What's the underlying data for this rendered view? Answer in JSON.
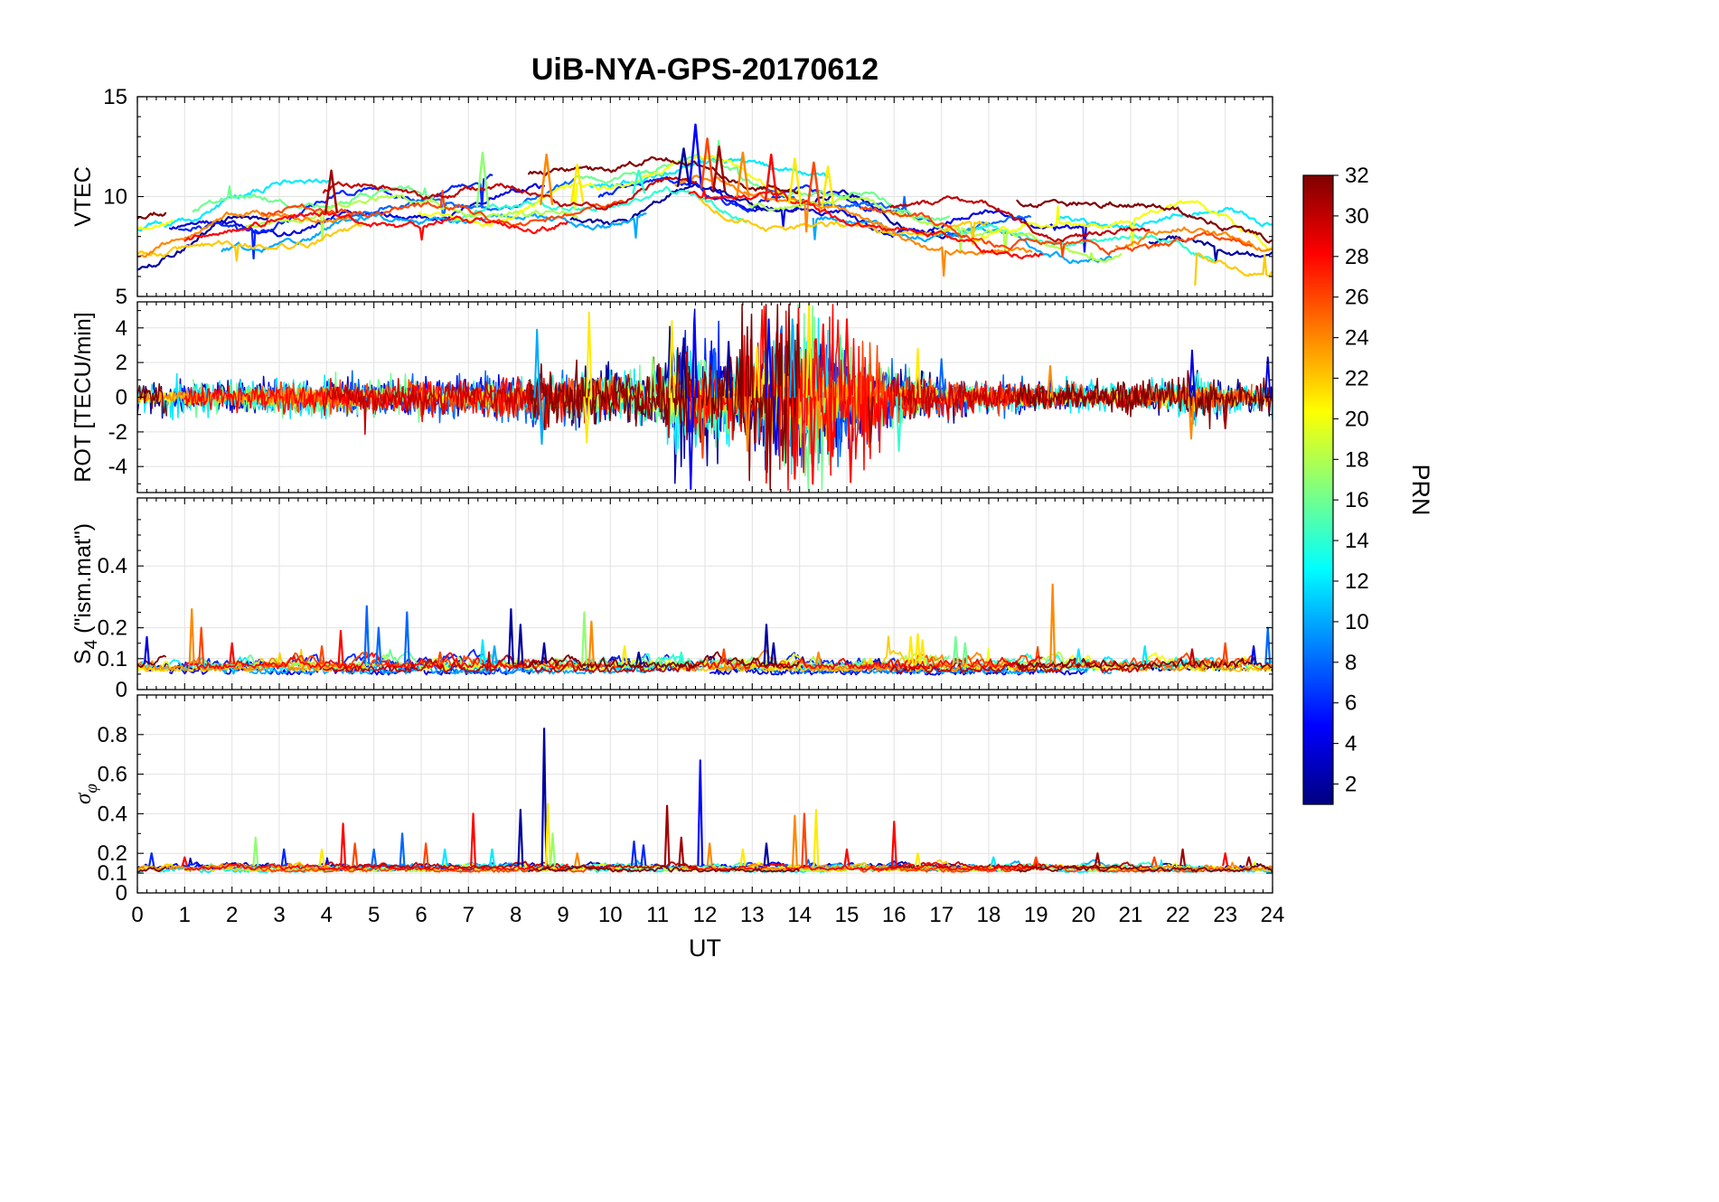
{
  "title": "UiB-NYA-GPS-20170612",
  "x_axis": {
    "label": "UT",
    "min": 0,
    "max": 24,
    "ticks": [
      0,
      1,
      2,
      3,
      4,
      5,
      6,
      7,
      8,
      9,
      10,
      11,
      12,
      13,
      14,
      15,
      16,
      17,
      18,
      19,
      20,
      21,
      22,
      23,
      24
    ],
    "minor_step": 0.2
  },
  "colorbar": {
    "label": "PRN",
    "min": 1,
    "max": 32,
    "ticks": [
      2,
      4,
      6,
      8,
      10,
      12,
      14,
      16,
      18,
      20,
      22,
      24,
      26,
      28,
      30,
      32
    ],
    "colormap": "jet"
  },
  "prns": [
    2,
    4,
    6,
    8,
    10,
    12,
    14,
    16,
    18,
    20,
    22,
    24,
    26,
    28,
    30,
    32
  ],
  "chart_data": [
    {
      "id": "vtec",
      "type": "line",
      "ylabel": "VTEC",
      "ylabel_parts": [
        {
          "t": "VTEC"
        }
      ],
      "ylim": [
        5,
        15
      ],
      "yticks": [
        5,
        10,
        15
      ],
      "yminor": [
        6,
        7,
        8,
        9,
        11,
        12,
        13,
        14
      ],
      "mode": "wander",
      "trend": {
        "t": [
          0,
          1,
          2,
          3,
          4,
          5,
          6,
          7,
          8,
          9,
          10,
          11,
          11.8,
          12.5,
          13,
          14,
          15,
          16,
          17,
          18,
          19,
          20,
          21,
          22,
          23,
          24
        ],
        "v": [
          7.6,
          8.0,
          8.6,
          8.9,
          9.2,
          9.4,
          9.4,
          9.5,
          9.5,
          9.7,
          9.9,
          10.4,
          10.6,
          10.2,
          9.9,
          9.7,
          9.4,
          8.9,
          8.7,
          8.5,
          8.2,
          8.1,
          8.0,
          8.1,
          7.8,
          7.2
        ]
      },
      "spread": 1.1,
      "spikes": [
        [
          4.1,
          11.3,
          31
        ],
        [
          7.3,
          12.2,
          17
        ],
        [
          8.65,
          12.1,
          24
        ],
        [
          9.3,
          11.6,
          21
        ],
        [
          10.6,
          11.3,
          14
        ],
        [
          11.55,
          12.4,
          2
        ],
        [
          11.8,
          13.6,
          5
        ],
        [
          12.05,
          12.9,
          26
        ],
        [
          12.3,
          12.5,
          31
        ],
        [
          12.8,
          12.2,
          24
        ],
        [
          13.4,
          12.1,
          28
        ],
        [
          13.9,
          11.9,
          21
        ],
        [
          14.3,
          11.7,
          26
        ],
        [
          14.6,
          11.5,
          21
        ]
      ]
    },
    {
      "id": "rot",
      "type": "line",
      "ylabel": "ROT [TECU/min]",
      "ylabel_parts": [
        {
          "t": "ROT [TECU/min]"
        }
      ],
      "ylim": [
        -5.5,
        5.5
      ],
      "yticks": [
        -4,
        -2,
        0,
        2,
        4
      ],
      "yminor": [
        -5,
        -3,
        -1,
        1,
        3,
        5
      ],
      "mode": "symnoise",
      "envelope": {
        "t": [
          0,
          1,
          2,
          3,
          4,
          5,
          6,
          7,
          8,
          8.5,
          9,
          9.5,
          10,
          10.5,
          11,
          11.3,
          11.6,
          12,
          12.5,
          13,
          13.3,
          13.6,
          14,
          14.3,
          14.6,
          15,
          15.3,
          15.6,
          16,
          16.5,
          17,
          18,
          19,
          20,
          21,
          22,
          22.3,
          22.6,
          23,
          24
        ],
        "a": [
          0.45,
          0.5,
          0.5,
          0.55,
          0.6,
          0.6,
          0.6,
          0.65,
          0.75,
          0.85,
          0.8,
          0.9,
          0.8,
          0.85,
          0.9,
          1.4,
          1.6,
          1.3,
          1.2,
          1.5,
          1.8,
          1.6,
          1.9,
          2.1,
          1.9,
          1.8,
          1.4,
          1.0,
          0.9,
          0.8,
          0.6,
          0.55,
          0.5,
          0.45,
          0.45,
          0.5,
          0.9,
          0.7,
          0.5,
          0.45
        ]
      },
      "spikes": [
        [
          8.45,
          3.9,
          10
        ],
        [
          8.55,
          -2.7,
          10
        ],
        [
          9.5,
          -2.6,
          21
        ],
        [
          9.55,
          4.9,
          21
        ],
        [
          10.9,
          2.3,
          17
        ],
        [
          11.3,
          4.4,
          21
        ],
        [
          11.55,
          3.4,
          2
        ],
        [
          11.7,
          -5.3,
          5
        ],
        [
          11.78,
          4.7,
          5
        ],
        [
          11.95,
          -3.5,
          26
        ],
        [
          12.2,
          2.8,
          8
        ],
        [
          12.5,
          3.2,
          2
        ],
        [
          12.9,
          -3.1,
          24
        ],
        [
          13.1,
          2.9,
          21
        ],
        [
          13.35,
          4.5,
          5
        ],
        [
          13.5,
          -3.3,
          5
        ],
        [
          13.85,
          4.5,
          10
        ],
        [
          13.9,
          -4.7,
          28
        ],
        [
          14.2,
          5.4,
          21
        ],
        [
          14.28,
          -5.0,
          28
        ],
        [
          14.5,
          4.2,
          28
        ],
        [
          14.7,
          -3.4,
          28
        ],
        [
          15.0,
          4.5,
          28
        ],
        [
          15.08,
          -4.9,
          28
        ],
        [
          15.5,
          -2.6,
          31
        ],
        [
          16.1,
          -3.1,
          14
        ],
        [
          16.5,
          2.8,
          21
        ],
        [
          17.0,
          2.2,
          8
        ],
        [
          19.3,
          1.8,
          24
        ],
        [
          22.3,
          2.7,
          4
        ],
        [
          22.28,
          -2.4,
          24
        ],
        [
          23.0,
          -1.8,
          31
        ],
        [
          23.9,
          2.3,
          4
        ]
      ]
    },
    {
      "id": "s4",
      "type": "line",
      "ylabel": "S4 (\"ism.mat\")",
      "ylabel_parts": [
        {
          "t": "S"
        },
        {
          "t": "4",
          "sub": true
        },
        {
          "t": " (\"ism.mat\")"
        }
      ],
      "ylim": [
        0,
        0.62
      ],
      "yticks": [
        0,
        0.1,
        0.2,
        0.4
      ],
      "yminor": [
        0.05,
        0.15,
        0.25,
        0.3,
        0.35,
        0.45,
        0.5,
        0.55
      ],
      "mode": "floor",
      "base": 0.055,
      "step": 0.03,
      "bump": 0.08,
      "spikes": [
        [
          0.2,
          0.17,
          4
        ],
        [
          1.15,
          0.26,
          24
        ],
        [
          1.35,
          0.2,
          26
        ],
        [
          2.0,
          0.15,
          28
        ],
        [
          3.9,
          0.14,
          26
        ],
        [
          4.3,
          0.19,
          28
        ],
        [
          4.85,
          0.27,
          8
        ],
        [
          5.1,
          0.2,
          8
        ],
        [
          5.7,
          0.25,
          8
        ],
        [
          6.4,
          0.12,
          26
        ],
        [
          7.3,
          0.16,
          12
        ],
        [
          7.55,
          0.14,
          10
        ],
        [
          7.9,
          0.26,
          2
        ],
        [
          8.1,
          0.21,
          2
        ],
        [
          8.6,
          0.15,
          2
        ],
        [
          9.45,
          0.25,
          17
        ],
        [
          9.6,
          0.22,
          24
        ],
        [
          10.3,
          0.14,
          21
        ],
        [
          10.6,
          0.12,
          2
        ],
        [
          11.5,
          0.12,
          14
        ],
        [
          12.4,
          0.13,
          26
        ],
        [
          13.3,
          0.21,
          2
        ],
        [
          13.45,
          0.15,
          2
        ],
        [
          14.4,
          0.12,
          24
        ],
        [
          15.5,
          0.1,
          21
        ],
        [
          16.35,
          0.17,
          21
        ],
        [
          16.5,
          0.18,
          21
        ],
        [
          16.6,
          0.16,
          21
        ],
        [
          17.3,
          0.17,
          16
        ],
        [
          17.5,
          0.15,
          16
        ],
        [
          19.35,
          0.34,
          24
        ],
        [
          19.9,
          0.13,
          12
        ],
        [
          21.3,
          0.14,
          12
        ],
        [
          22.3,
          0.13,
          30
        ],
        [
          23.0,
          0.15,
          26
        ],
        [
          23.6,
          0.14,
          4
        ],
        [
          23.9,
          0.2,
          8
        ]
      ]
    },
    {
      "id": "sigma-phi",
      "type": "line",
      "ylabel": "σφ",
      "ylabel_parts": [
        {
          "t": "σ",
          "i": true
        },
        {
          "t": "φ",
          "sub": true,
          "i": true
        }
      ],
      "ylim": [
        0,
        1.0
      ],
      "yticks": [
        0,
        0.1,
        0.2,
        0.4,
        0.6,
        0.8
      ],
      "yminor": [
        0.3,
        0.5,
        0.7,
        0.9
      ],
      "mode": "floor",
      "base": 0.11,
      "step": 0.022,
      "bump": 0.06,
      "spikes": [
        [
          0.3,
          0.2,
          6
        ],
        [
          1.0,
          0.18,
          28
        ],
        [
          2.5,
          0.28,
          17
        ],
        [
          3.1,
          0.22,
          6
        ],
        [
          3.9,
          0.22,
          21
        ],
        [
          4.35,
          0.35,
          28
        ],
        [
          4.6,
          0.25,
          26
        ],
        [
          5.0,
          0.22,
          8
        ],
        [
          5.6,
          0.3,
          8
        ],
        [
          6.1,
          0.25,
          26
        ],
        [
          6.5,
          0.22,
          12
        ],
        [
          7.1,
          0.4,
          28
        ],
        [
          7.5,
          0.22,
          12
        ],
        [
          8.1,
          0.42,
          2
        ],
        [
          8.6,
          0.83,
          2
        ],
        [
          8.68,
          0.45,
          21
        ],
        [
          8.78,
          0.3,
          17
        ],
        [
          9.3,
          0.2,
          24
        ],
        [
          10.5,
          0.26,
          6
        ],
        [
          10.7,
          0.24,
          6
        ],
        [
          11.2,
          0.44,
          31
        ],
        [
          11.5,
          0.28,
          31
        ],
        [
          11.9,
          0.67,
          5
        ],
        [
          12.1,
          0.25,
          24
        ],
        [
          12.8,
          0.22,
          21
        ],
        [
          13.3,
          0.25,
          2
        ],
        [
          13.9,
          0.39,
          24
        ],
        [
          14.1,
          0.4,
          26
        ],
        [
          14.35,
          0.42,
          21
        ],
        [
          15.0,
          0.22,
          28
        ],
        [
          16.0,
          0.36,
          28
        ],
        [
          16.5,
          0.2,
          21
        ],
        [
          18.1,
          0.18,
          12
        ],
        [
          19.0,
          0.18,
          26
        ],
        [
          20.3,
          0.2,
          31
        ],
        [
          21.5,
          0.18,
          26
        ],
        [
          22.1,
          0.22,
          31
        ],
        [
          23.0,
          0.2,
          28
        ],
        [
          23.5,
          0.18,
          31
        ]
      ]
    }
  ]
}
